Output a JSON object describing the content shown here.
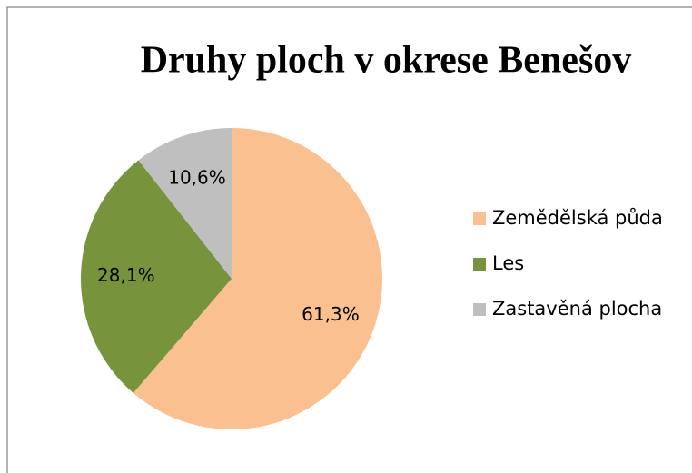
{
  "chart_data": {
    "type": "pie",
    "title": "Druhy ploch v okrese Benešov",
    "categories": [
      "Zemědělská půda",
      "Les",
      "Zastavěná plocha"
    ],
    "values": [
      61.3,
      28.1,
      10.6
    ],
    "value_labels": [
      "61,3%",
      "28,1%",
      "10,6%"
    ],
    "colors": [
      "#FAC090",
      "#77933C",
      "#BFBFBF"
    ],
    "legend": "right"
  }
}
